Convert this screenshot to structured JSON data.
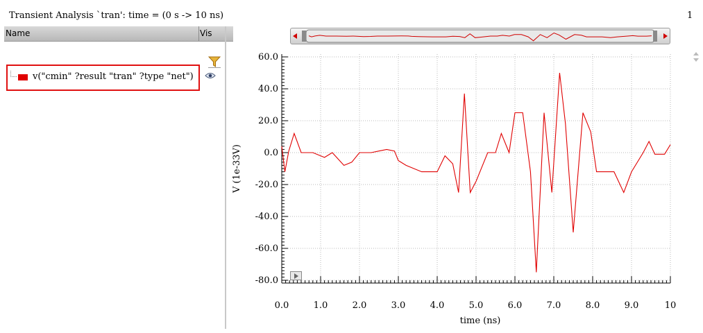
{
  "window": {
    "title": "Transient Analysis `tran': time = (0 s -> 10 ns)",
    "page_number": "1"
  },
  "panel": {
    "header_name": "Name",
    "header_vis": "Vis",
    "signals": [
      {
        "label": "v(\"cmin\" ?result \"tran\" ?type \"net\")",
        "color": "#e00000",
        "visible": true
      }
    ]
  },
  "icons": {
    "filter": "filter-icon",
    "visibility": "eye-icon",
    "play": "play-icon",
    "scroll_left": "arrow-left-icon",
    "scroll_right": "arrow-right-icon"
  },
  "chart_data": {
    "type": "line",
    "xlabel": "time (ns)",
    "ylabel": "V (1e-33V)",
    "xlim": [
      0,
      10
    ],
    "ylim": [
      -80,
      60
    ],
    "xticks": [
      "0.0",
      "1.0",
      "2.0",
      "3.0",
      "4.0",
      "5.0",
      "6.0",
      "7.0",
      "8.0",
      "9.0",
      "10"
    ],
    "yticks": [
      "60.0",
      "40.0",
      "20.0",
      "0.0",
      "-20.0",
      "-40.0",
      "-60.0",
      "-80.0"
    ],
    "grid": true,
    "series": [
      {
        "color": "#e00000",
        "x": [
          0,
          0.08,
          0.18,
          0.32,
          0.5,
          0.8,
          1.1,
          1.3,
          1.6,
          1.8,
          2.0,
          2.3,
          2.5,
          2.7,
          2.9,
          3.0,
          3.2,
          3.6,
          4.0,
          4.2,
          4.4,
          4.55,
          4.7,
          4.85,
          5.0,
          5.3,
          5.5,
          5.65,
          5.85,
          6.0,
          6.2,
          6.4,
          6.55,
          6.75,
          6.95,
          7.15,
          7.3,
          7.5,
          7.75,
          7.95,
          8.1,
          8.3,
          8.55,
          8.8,
          9.0,
          9.3,
          9.45,
          9.6,
          9.75,
          9.85,
          10.0
        ],
        "y": [
          4,
          -12,
          1,
          12,
          0,
          0,
          -3,
          0,
          -8,
          -6,
          0,
          0,
          1,
          2,
          1,
          -5,
          -8,
          -12,
          -12,
          -2,
          -7,
          -25,
          37,
          -25,
          -18,
          0,
          0,
          12,
          0,
          25,
          25,
          -12,
          -75,
          25,
          -25,
          50,
          18,
          -50,
          25,
          13,
          -12,
          -12,
          -12,
          -25,
          -12,
          0,
          7,
          -1,
          -1,
          -1,
          5
        ]
      }
    ]
  }
}
